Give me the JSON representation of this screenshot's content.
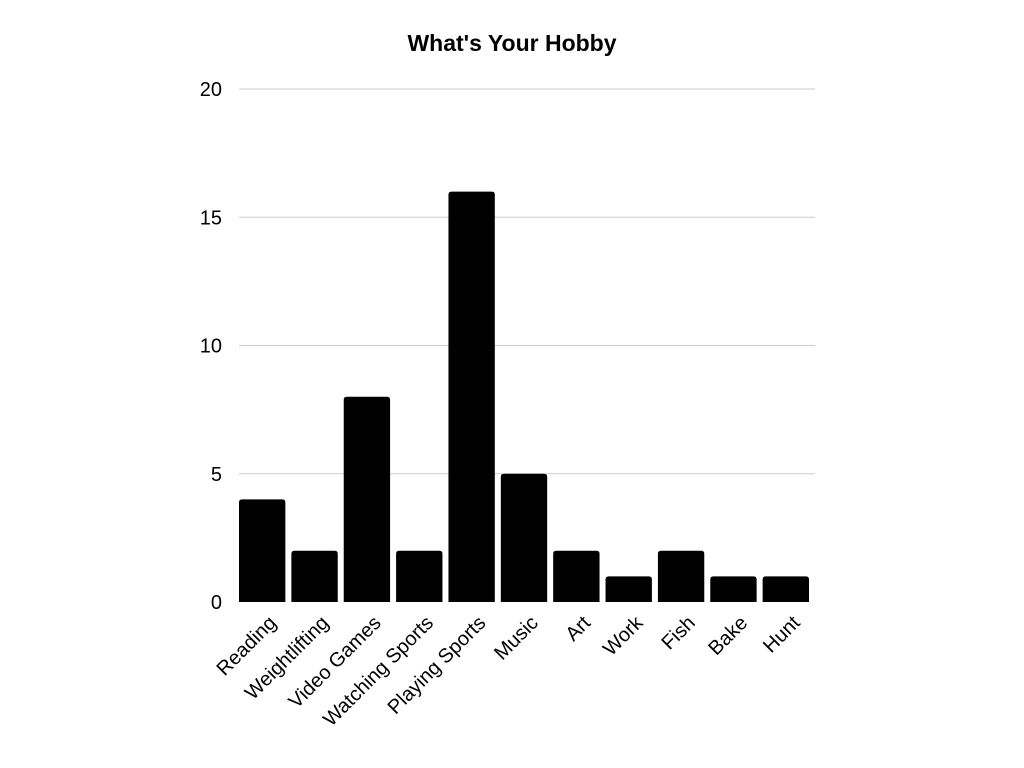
{
  "chart_data": {
    "type": "bar",
    "title": "What's Your Hobby",
    "xlabel": "",
    "ylabel": "",
    "categories": [
      "Reading",
      "Weightlifting",
      "Video Games",
      "Watching Sports",
      "Playing Sports",
      "Music",
      "Art",
      "Work",
      "Fish",
      "Bake",
      "Hunt"
    ],
    "values": [
      4,
      2,
      8,
      2,
      16,
      5,
      2,
      1,
      2,
      1,
      1
    ],
    "ylim": [
      0,
      20
    ],
    "yticks": [
      0,
      5,
      10,
      15,
      20
    ],
    "grid": true,
    "legend": "none",
    "bar_color": "#000000",
    "grid_color": "#cccccc"
  }
}
